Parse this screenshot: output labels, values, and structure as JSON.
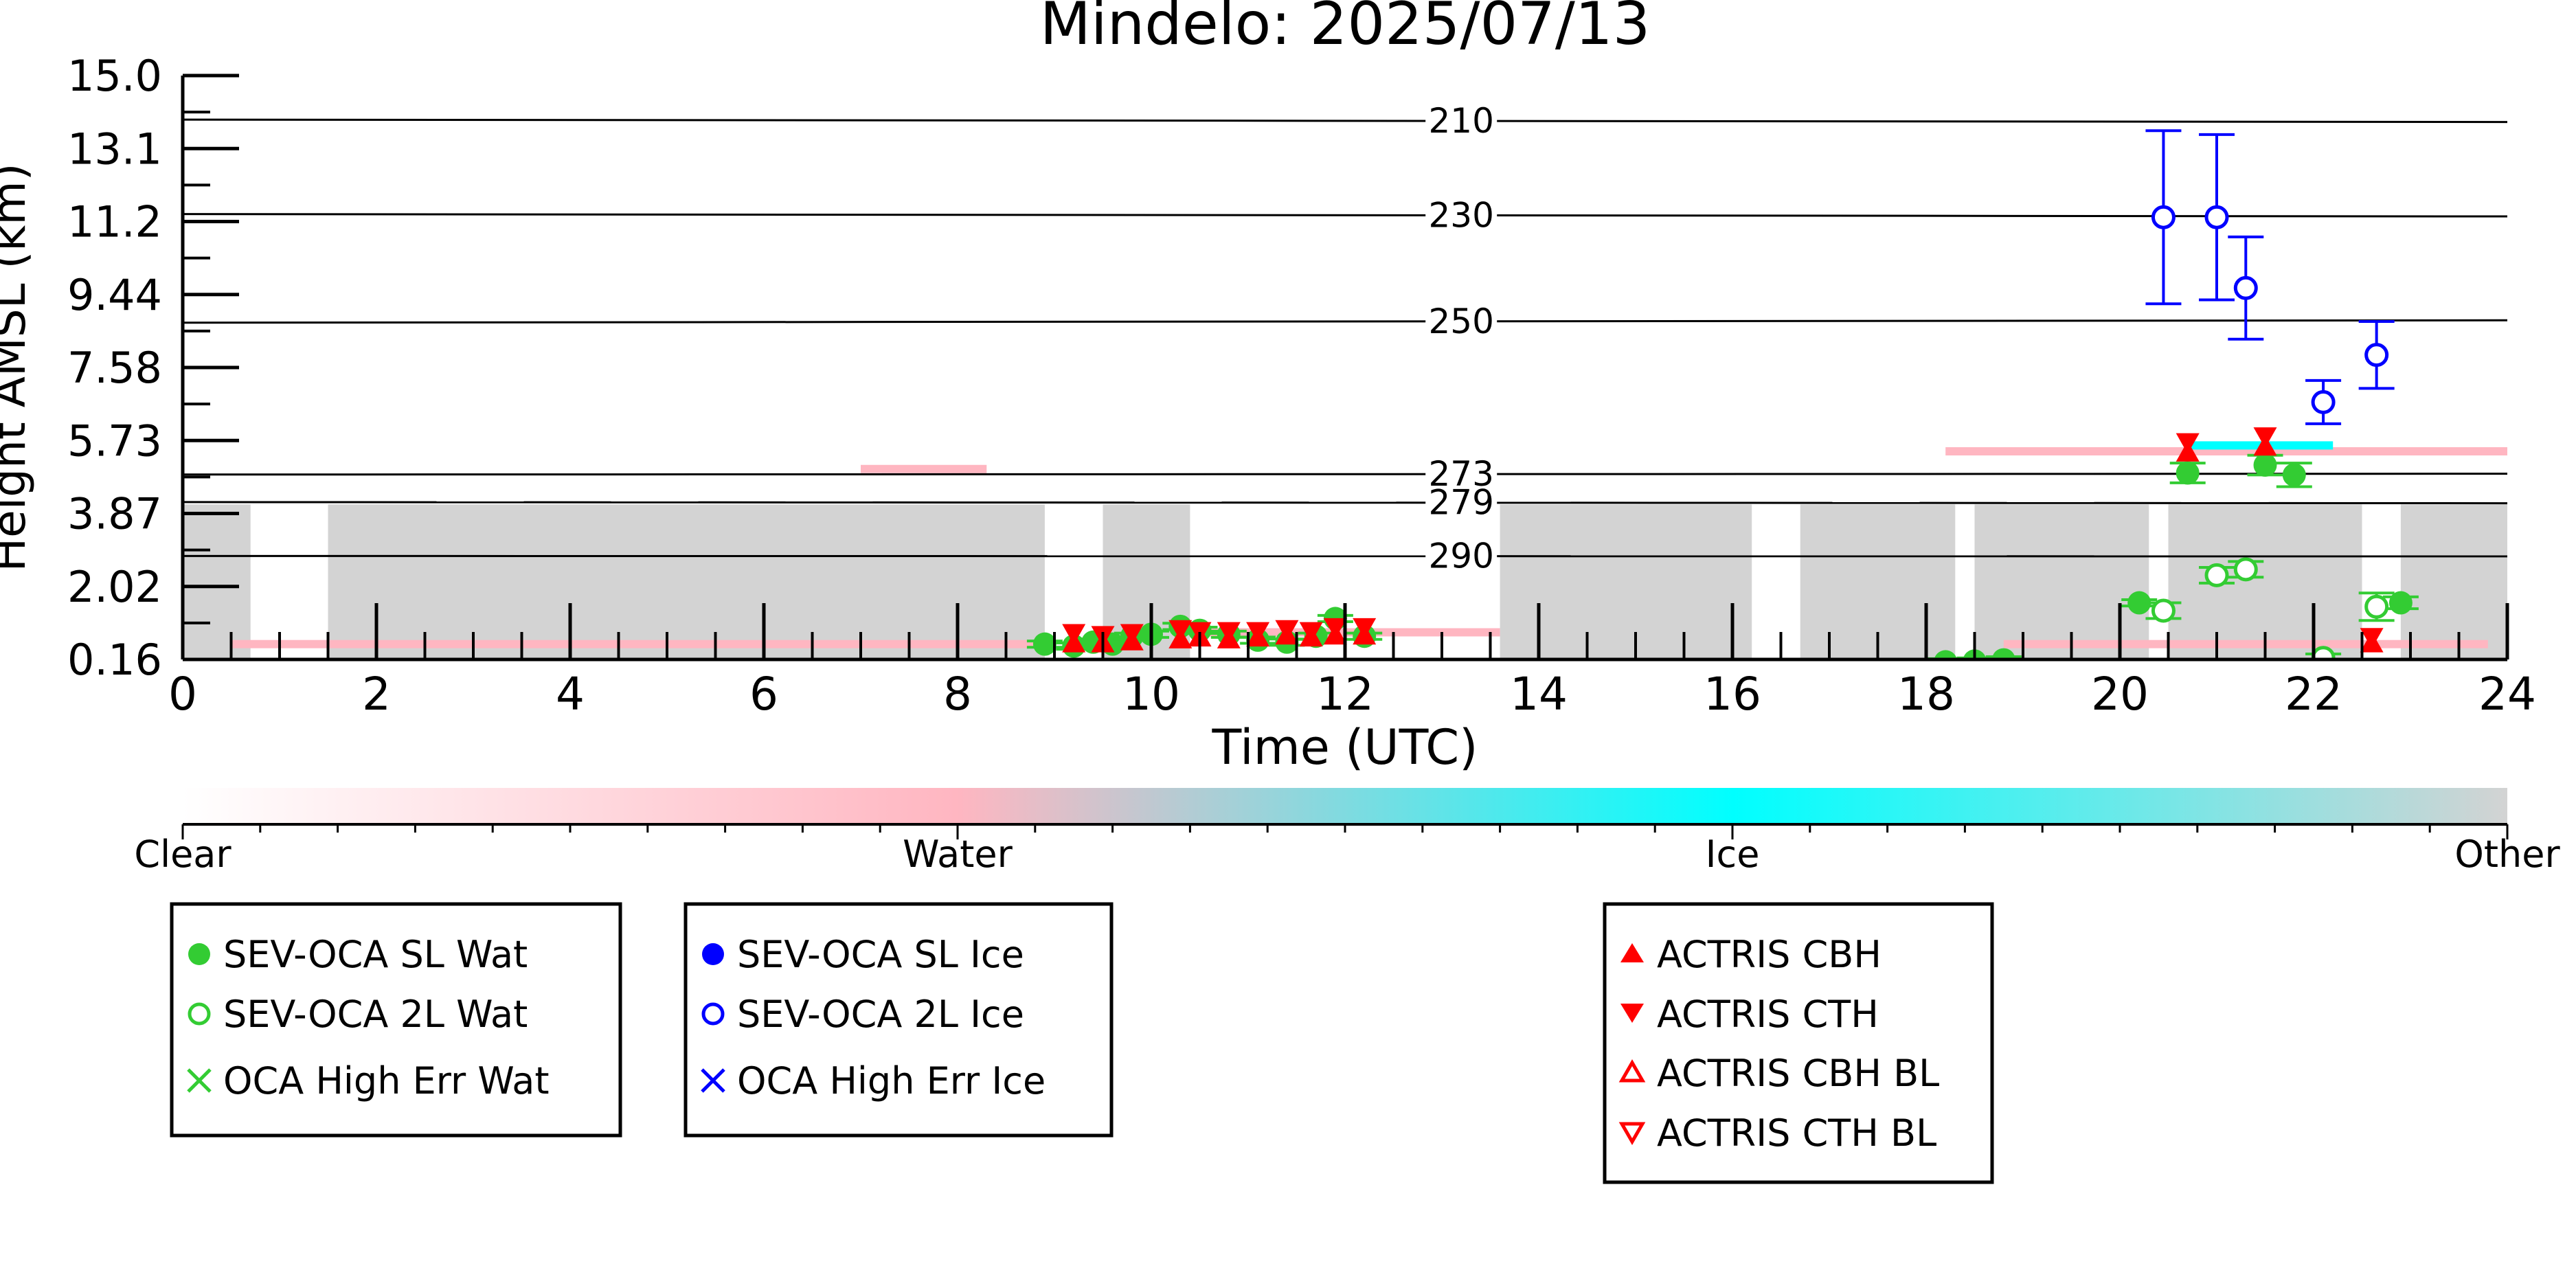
{
  "chart_data": {
    "type": "scatter",
    "title": "Mindelo: 2025/07/13",
    "xlabel": "Time (UTC)",
    "ylabel": "Height AMSL (km)",
    "xlim": [
      0,
      24
    ],
    "ylim": [
      0.16,
      15.0
    ],
    "xticks": [
      "0",
      "2",
      "4",
      "6",
      "8",
      "10",
      "12",
      "14",
      "16",
      "18",
      "20",
      "22",
      "24"
    ],
    "yticks": [
      "0.16",
      "2.02",
      "3.87",
      "5.73",
      "7.58",
      "9.44",
      "11.2",
      "13.1",
      "15.0"
    ],
    "grid": false,
    "isotherms": [
      {
        "label": "210",
        "y_left": 13.88,
        "y_right": 13.82
      },
      {
        "label": "230",
        "y_left": 11.48,
        "y_right": 11.42
      },
      {
        "label": "250",
        "y_left": 8.72,
        "y_right": 8.78
      },
      {
        "label": "273",
        "y_left": 4.86,
        "y_right": 4.88
      },
      {
        "label": "279",
        "y_left": 4.16,
        "y_right": 4.13
      },
      {
        "label": "290",
        "y_left": 2.79,
        "y_right": 2.78
      }
    ],
    "colorbar": {
      "labels": [
        "Clear",
        "Water",
        "Ice",
        "Other"
      ],
      "colors": [
        "#ffffff",
        "#ffb6c1",
        "#00ffff",
        "#d3d3d3"
      ]
    },
    "background": {
      "other_segments": [
        [
          0.0,
          0.7
        ],
        [
          1.5,
          8.9
        ],
        [
          9.5,
          10.4
        ],
        [
          13.6,
          16.2
        ],
        [
          16.7,
          18.3
        ],
        [
          18.5,
          20.3
        ],
        [
          20.5,
          22.5
        ],
        [
          22.9,
          24.0
        ]
      ],
      "other_top_km": 4.1,
      "water_bands": [
        {
          "x": [
            0.5,
            9.0
          ],
          "y": 0.55
        },
        {
          "x": [
            10.6,
            13.6
          ],
          "y": 0.85
        },
        {
          "x": [
            18.8,
            23.8
          ],
          "y": 0.55
        },
        {
          "x": [
            18.2,
            24.0
          ],
          "y": 5.45
        },
        {
          "x": [
            7.0,
            8.3
          ],
          "y": 5.0
        }
      ],
      "ice_band": {
        "x": [
          20.7,
          22.2
        ],
        "y": 5.6
      }
    },
    "series": [
      {
        "name": "SEV-OCA SL Wat",
        "marker": "filled-circle",
        "color": "#33cc33",
        "points": [
          {
            "x": 8.9,
            "y": 0.55,
            "err": 0.08
          },
          {
            "x": 9.2,
            "y": 0.5,
            "err": 0.08
          },
          {
            "x": 9.4,
            "y": 0.6,
            "err": 0.08
          },
          {
            "x": 9.6,
            "y": 0.55,
            "err": 0.08
          },
          {
            "x": 9.8,
            "y": 0.75,
            "err": 0.08
          },
          {
            "x": 10.0,
            "y": 0.8,
            "err": 0.08
          },
          {
            "x": 10.3,
            "y": 1.0,
            "err": 0.08
          },
          {
            "x": 10.5,
            "y": 0.9,
            "err": 0.08
          },
          {
            "x": 10.8,
            "y": 0.8,
            "err": 0.08
          },
          {
            "x": 11.1,
            "y": 0.65,
            "err": 0.08
          },
          {
            "x": 11.4,
            "y": 0.6,
            "err": 0.08
          },
          {
            "x": 11.7,
            "y": 0.75,
            "err": 0.08
          },
          {
            "x": 11.9,
            "y": 1.2,
            "err": 0.08
          },
          {
            "x": 12.2,
            "y": 0.75,
            "err": 0.08
          },
          {
            "x": 18.2,
            "y": 0.1,
            "err": 0.08
          },
          {
            "x": 18.5,
            "y": 0.12,
            "err": 0.08
          },
          {
            "x": 18.8,
            "y": 0.15,
            "err": 0.08
          },
          {
            "x": 20.2,
            "y": 1.6,
            "err": 0.08
          },
          {
            "x": 20.7,
            "y": 4.9,
            "err": 0.25
          },
          {
            "x": 21.5,
            "y": 5.1,
            "err": 0.25
          },
          {
            "x": 21.8,
            "y": 4.85,
            "err": 0.3
          },
          {
            "x": 22.9,
            "y": 1.6,
            "err": 0.15
          }
        ]
      },
      {
        "name": "SEV-OCA 2L Wat",
        "marker": "open-circle",
        "color": "#33cc33",
        "points": [
          {
            "x": 20.45,
            "y": 1.4,
            "err": 0.2
          },
          {
            "x": 21.0,
            "y": 2.3,
            "err": 0.2
          },
          {
            "x": 21.3,
            "y": 2.45,
            "err": 0.2
          },
          {
            "x": 22.1,
            "y": 0.2,
            "err": 0.1
          },
          {
            "x": 22.65,
            "y": 1.5,
            "err": 0.35
          }
        ]
      },
      {
        "name": "OCA High Err Wat",
        "marker": "x",
        "color": "#33cc33",
        "points": []
      },
      {
        "name": "SEV-OCA SL Ice",
        "marker": "filled-circle",
        "color": "#0000ff",
        "points": []
      },
      {
        "name": "SEV-OCA 2L Ice",
        "marker": "open-circle",
        "color": "#0000ff",
        "points": [
          {
            "x": 20.45,
            "y": 11.4,
            "err": 2.2
          },
          {
            "x": 21.0,
            "y": 11.4,
            "err": 2.1
          },
          {
            "x": 21.3,
            "y": 9.6,
            "err": 1.3
          },
          {
            "x": 22.1,
            "y": 6.7,
            "err": 0.55
          },
          {
            "x": 22.65,
            "y": 7.9,
            "err": 0.85
          }
        ]
      },
      {
        "name": "OCA High Err Ice",
        "marker": "x",
        "color": "#0000ff",
        "points": []
      },
      {
        "name": "ACTRIS CBH",
        "marker": "triangle-up",
        "color": "#ff0000",
        "points": [
          {
            "x": 9.2,
            "y": 0.55
          },
          {
            "x": 9.5,
            "y": 0.55
          },
          {
            "x": 9.8,
            "y": 0.6
          },
          {
            "x": 10.3,
            "y": 0.65
          },
          {
            "x": 10.5,
            "y": 0.7
          },
          {
            "x": 10.8,
            "y": 0.65
          },
          {
            "x": 11.1,
            "y": 0.7
          },
          {
            "x": 11.4,
            "y": 0.75
          },
          {
            "x": 11.65,
            "y": 0.7
          },
          {
            "x": 11.9,
            "y": 0.75
          },
          {
            "x": 12.2,
            "y": 0.75
          },
          {
            "x": 20.7,
            "y": 5.4
          },
          {
            "x": 21.5,
            "y": 5.55
          },
          {
            "x": 22.6,
            "y": 0.55
          }
        ]
      },
      {
        "name": "ACTRIS CTH",
        "marker": "triangle-down",
        "color": "#ff0000",
        "points": [
          {
            "x": 9.2,
            "y": 0.85
          },
          {
            "x": 9.5,
            "y": 0.8
          },
          {
            "x": 9.8,
            "y": 0.85
          },
          {
            "x": 10.3,
            "y": 0.95
          },
          {
            "x": 10.5,
            "y": 0.9
          },
          {
            "x": 10.8,
            "y": 0.9
          },
          {
            "x": 11.1,
            "y": 0.9
          },
          {
            "x": 11.4,
            "y": 0.95
          },
          {
            "x": 11.65,
            "y": 0.9
          },
          {
            "x": 11.9,
            "y": 1.0
          },
          {
            "x": 12.2,
            "y": 1.0
          },
          {
            "x": 20.7,
            "y": 5.7
          },
          {
            "x": 21.5,
            "y": 5.85
          },
          {
            "x": 22.6,
            "y": 0.75
          }
        ]
      },
      {
        "name": "ACTRIS CBH BL",
        "marker": "open-triangle-up",
        "color": "#ff0000",
        "points": []
      },
      {
        "name": "ACTRIS CTH BL",
        "marker": "open-triangle-down",
        "color": "#ff0000",
        "points": []
      }
    ],
    "legend_groups": [
      [
        "SEV-OCA SL Wat",
        "SEV-OCA 2L Wat",
        "OCA High Err Wat"
      ],
      [
        "SEV-OCA SL Ice",
        "SEV-OCA 2L Ice",
        "OCA High Err Ice"
      ],
      [
        "ACTRIS CBH",
        "ACTRIS CTH",
        "ACTRIS CBH BL",
        "ACTRIS CTH BL"
      ]
    ]
  }
}
